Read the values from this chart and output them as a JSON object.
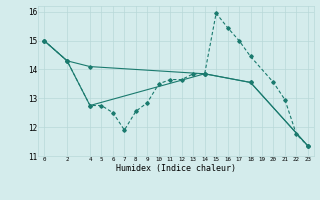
{
  "xlabel": "Humidex (Indice chaleur)",
  "xlim": [
    -0.5,
    23.5
  ],
  "ylim": [
    11,
    16.2
  ],
  "yticks": [
    11,
    12,
    13,
    14,
    15,
    16
  ],
  "xticks": [
    0,
    2,
    4,
    5,
    6,
    7,
    8,
    9,
    10,
    11,
    12,
    13,
    14,
    15,
    16,
    17,
    18,
    19,
    20,
    21,
    22,
    23
  ],
  "bg_color": "#d4ecec",
  "line_color": "#1a7a6e",
  "grid_color": "#b8d8d8",
  "line1_solid_top": {
    "x": [
      0,
      2,
      4,
      14,
      18,
      23
    ],
    "y": [
      15.0,
      14.3,
      14.1,
      13.85,
      13.55,
      11.35
    ]
  },
  "line2_dashed": {
    "x": [
      0,
      2,
      4,
      5,
      6,
      7,
      8,
      9,
      10,
      11,
      12,
      13,
      14,
      15,
      16,
      17,
      18,
      20,
      21,
      22,
      23
    ],
    "y": [
      15.0,
      14.3,
      12.75,
      12.75,
      12.5,
      11.9,
      12.55,
      12.85,
      13.5,
      13.65,
      13.65,
      13.85,
      13.85,
      15.95,
      15.45,
      15.0,
      14.45,
      13.55,
      12.95,
      11.75,
      11.35
    ]
  },
  "line3_solid_bottom": {
    "x": [
      0,
      2,
      4,
      14,
      18,
      23
    ],
    "y": [
      15.0,
      14.3,
      12.75,
      13.85,
      13.55,
      11.35
    ]
  }
}
